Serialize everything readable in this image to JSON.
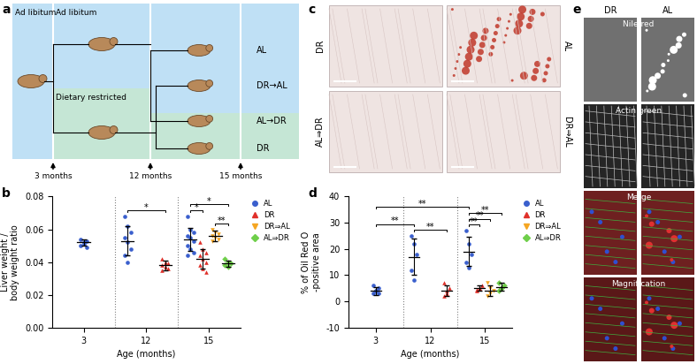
{
  "panel_labels": [
    "a",
    "b",
    "c",
    "d",
    "e"
  ],
  "diagram": {
    "bands": [
      "Ad libitum",
      "Ad libitum",
      "Dietary restricted"
    ],
    "timepoints": [
      "3 months",
      "12 months",
      "15 months"
    ],
    "groups": [
      "AL",
      "DR→AL",
      "AL→DR",
      "DR"
    ]
  },
  "chart_data": [
    {
      "type": "scatter",
      "x_label": "Age (months)",
      "y_label": "Liver weight /\nbody weight ratio",
      "categories": [
        "3",
        "12",
        "15"
      ],
      "ylim": [
        0,
        0.08
      ],
      "yticks": [
        {
          "value": 0,
          "label": "0.00"
        },
        {
          "value": 0.02,
          "label": "0.02"
        },
        {
          "value": 0.04,
          "label": "0.04"
        },
        {
          "value": 0.06,
          "label": "0.06"
        },
        {
          "value": 0.08,
          "label": "0.08"
        }
      ],
      "legend": "upper left",
      "series": [
        {
          "name": "AL",
          "color": "#3a5fcd",
          "marker": "circle",
          "values": [
            [
              0.05,
              0.052,
              0.053,
              0.054,
              0.051,
              0.049
            ],
            [
              0.068,
              0.062,
              0.058,
              0.055,
              0.052,
              0.048,
              0.044,
              0.04
            ],
            [
              0.068,
              0.06,
              0.058,
              0.056,
              0.055,
              0.053,
              0.05,
              0.048,
              0.046,
              0.044
            ]
          ],
          "mean": [
            0.052,
            0.053,
            0.054
          ],
          "sd": [
            0.002,
            0.009,
            0.007
          ]
        },
        {
          "name": "DR",
          "color": "#e0302a",
          "marker": "triangle",
          "values": [
            null,
            [
              0.042,
              0.04,
              0.039,
              0.038,
              0.037,
              0.036,
              0.035
            ],
            [
              0.052,
              0.048,
              0.046,
              0.044,
              0.042,
              0.04,
              0.038,
              0.036,
              0.034
            ]
          ],
          "mean": [
            null,
            0.038,
            0.042
          ],
          "sd": [
            null,
            0.003,
            0.006
          ]
        },
        {
          "name": "DR⇒AL",
          "color": "#f5a623",
          "marker": "triangle_down",
          "values": [
            null,
            null,
            [
              0.06,
              0.058,
              0.057,
              0.056,
              0.055,
              0.054,
              0.053
            ]
          ],
          "mean": [
            null,
            null,
            0.056
          ],
          "sd": [
            null,
            null,
            0.003
          ]
        },
        {
          "name": "AL⇒DR",
          "color": "#6fcf4a",
          "marker": "diamond",
          "values": [
            null,
            null,
            [
              0.042,
              0.04,
              0.039,
              0.038,
              0.037
            ]
          ],
          "mean": [
            null,
            null,
            0.039
          ],
          "sd": [
            null,
            null,
            0.002
          ]
        }
      ],
      "comparisons": [
        {
          "from": [
            "12",
            "AL"
          ],
          "to": [
            "12",
            "DR"
          ],
          "label": "*"
        },
        {
          "from": [
            "15",
            "AL"
          ],
          "to": [
            "15",
            "DR"
          ],
          "label": "*"
        },
        {
          "from": [
            "15",
            "AL"
          ],
          "to": [
            "15",
            "AL⇒DR"
          ],
          "label": "*"
        },
        {
          "from": [
            "15",
            "DR⇒AL"
          ],
          "to": [
            "15",
            "AL⇒DR"
          ],
          "label": "**"
        }
      ]
    },
    {
      "type": "scatter",
      "x_label": "Age (months)",
      "y_label": "% of Oil Red O\n-positive area",
      "categories": [
        "3",
        "12",
        "15"
      ],
      "ylim": [
        -10,
        40
      ],
      "yticks": [
        -10,
        0,
        10,
        20,
        30,
        40
      ],
      "legend": "upper left",
      "series": [
        {
          "name": "AL",
          "color": "#3a5fcd",
          "marker": "circle",
          "values": [
            [
              3,
              4,
              5,
              6,
              4,
              3
            ],
            [
              25,
              22,
              18,
              12,
              8
            ],
            [
              27,
              22,
              18,
              15,
              13
            ]
          ],
          "mean": [
            4,
            17,
            19
          ],
          "sd": [
            1.5,
            7,
            5.5
          ]
        },
        {
          "name": "DR",
          "color": "#e0302a",
          "marker": "triangle",
          "values": [
            null,
            [
              2,
              3,
              5,
              7,
              4
            ],
            [
              4,
              5,
              6,
              4.5,
              5
            ]
          ],
          "mean": [
            null,
            4,
            5
          ],
          "sd": [
            null,
            2,
            1
          ]
        },
        {
          "name": "DR⇒AL",
          "color": "#f5a623",
          "marker": "triangle_down",
          "values": [
            null,
            null,
            [
              2,
              3,
              4,
              7,
              5
            ]
          ],
          "mean": [
            null,
            null,
            4
          ],
          "sd": [
            null,
            null,
            2
          ]
        },
        {
          "name": "AL⇒DR",
          "color": "#6fcf4a",
          "marker": "diamond",
          "values": [
            null,
            null,
            [
              4,
              5,
              6,
              7,
              5
            ]
          ],
          "mean": [
            null,
            null,
            5.5
          ],
          "sd": [
            null,
            null,
            1.5
          ]
        }
      ],
      "comparisons": [
        {
          "from": [
            "12",
            "AL"
          ],
          "to": [
            "12",
            "DR"
          ],
          "label": "**"
        },
        {
          "from": [
            "3",
            "AL"
          ],
          "to": [
            "12",
            "AL"
          ],
          "label": "**"
        },
        {
          "from": [
            "3",
            "AL"
          ],
          "to": [
            "15",
            "AL"
          ],
          "label": "**"
        },
        {
          "from": [
            "15",
            "AL"
          ],
          "to": [
            "15",
            "DR"
          ],
          "label": "**"
        },
        {
          "from": [
            "15",
            "AL"
          ],
          "to": [
            "15",
            "DR⇒AL"
          ],
          "label": "**"
        },
        {
          "from": [
            "15",
            "AL"
          ],
          "to": [
            "15",
            "AL⇒DR"
          ],
          "label": "**"
        }
      ]
    }
  ],
  "oil_red_o_images": {
    "labels": [
      "DR",
      "AL",
      "AL⇒DR",
      "DR⇒AL"
    ]
  },
  "fluorescence_images": {
    "columns": [
      "DR",
      "AL"
    ],
    "rows": [
      "Nile red",
      "Actin green",
      "Merge",
      "Magnification"
    ]
  }
}
